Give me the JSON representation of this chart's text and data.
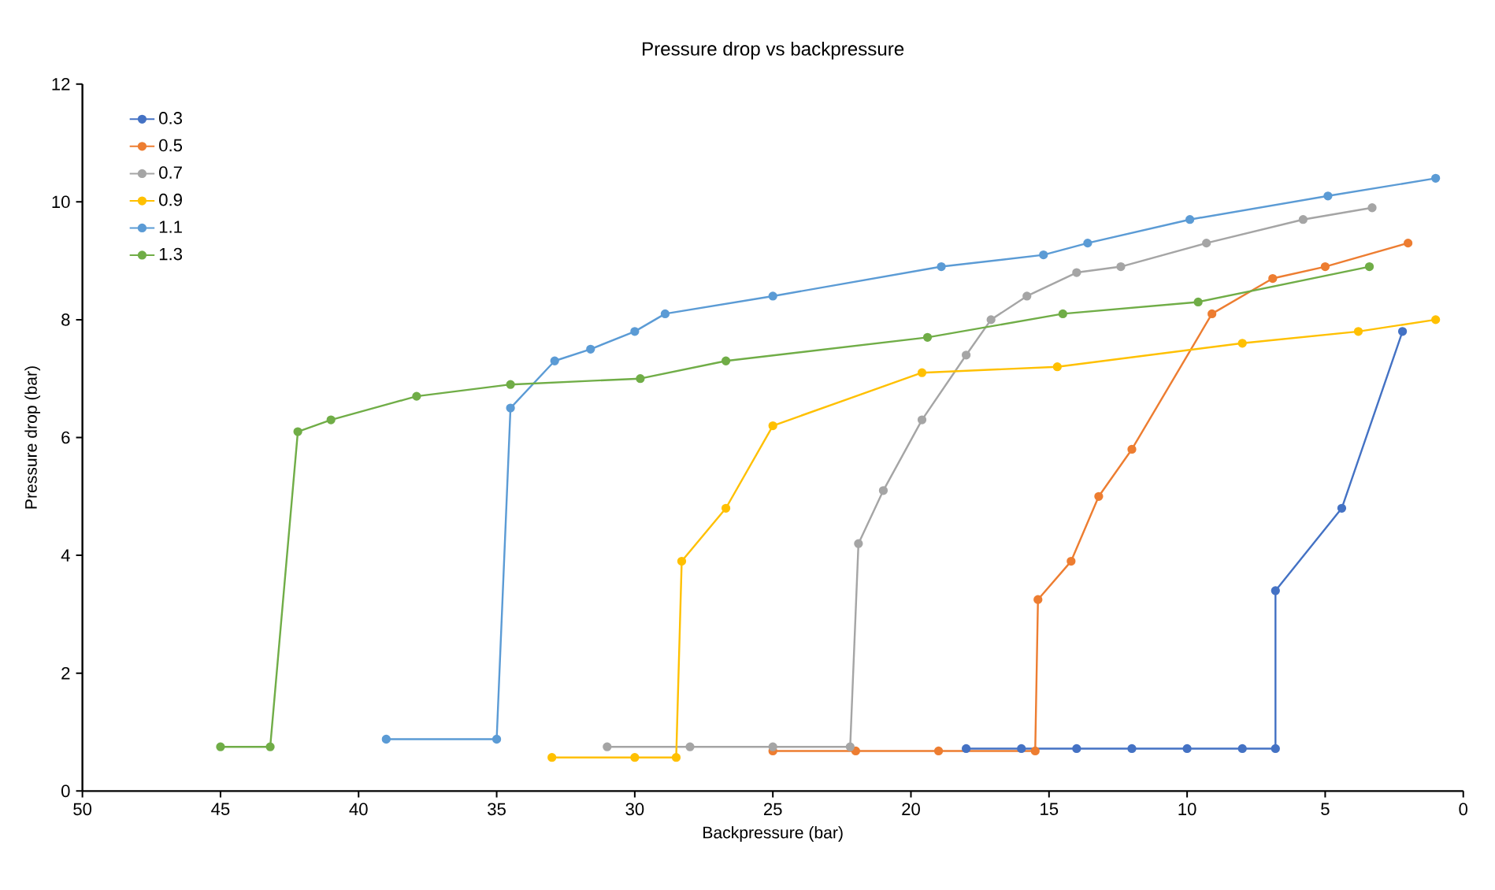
{
  "chart_data": {
    "type": "line",
    "title": "Pressure drop vs backpressure",
    "xlabel": "Backpressure (bar)",
    "ylabel": "Pressure drop (bar)",
    "xlim": [
      50,
      0
    ],
    "xticks": [
      50,
      45,
      40,
      35,
      30,
      25,
      20,
      15,
      10,
      5,
      0
    ],
    "ylim": [
      0,
      12
    ],
    "yticks": [
      0,
      2,
      4,
      6,
      8,
      10,
      12
    ],
    "grid": false,
    "legend": "top left",
    "marker": "circle",
    "line_style": "solid",
    "series": [
      {
        "name": "0.3",
        "color": "#4472c4",
        "x": [
          18,
          16,
          14,
          12,
          10,
          8,
          6.8,
          6.8,
          4.4,
          2.2
        ],
        "values": [
          0.72,
          0.72,
          0.72,
          0.72,
          0.72,
          0.72,
          0.72,
          3.4,
          4.8,
          7.8
        ]
      },
      {
        "name": "0.5",
        "color": "#ed7d31",
        "x": [
          25,
          22,
          19,
          15.5,
          15.4,
          14.2,
          13.2,
          12,
          9.1,
          6.9,
          5.0,
          2.0
        ],
        "values": [
          0.68,
          0.68,
          0.68,
          0.68,
          3.25,
          3.9,
          5.0,
          5.8,
          8.1,
          8.7,
          8.9,
          9.3
        ]
      },
      {
        "name": "0.7",
        "color": "#a5a5a5",
        "x": [
          31,
          28,
          25,
          22.2,
          21.9,
          21,
          19.6,
          18,
          17.1,
          15.8,
          14,
          12.4,
          9.3,
          5.8,
          3.3
        ],
        "values": [
          0.75,
          0.75,
          0.75,
          0.75,
          4.2,
          5.1,
          6.3,
          7.4,
          8.0,
          8.4,
          8.8,
          8.9,
          9.3,
          9.7,
          9.9
        ]
      },
      {
        "name": "0.9",
        "color": "#ffc000",
        "x": [
          33,
          30,
          28.5,
          28.3,
          26.7,
          25,
          19.6,
          14.7,
          8,
          3.8,
          1
        ],
        "values": [
          0.57,
          0.57,
          0.57,
          3.9,
          4.8,
          6.2,
          7.1,
          7.2,
          7.6,
          7.8,
          8.0
        ]
      },
      {
        "name": "1.1",
        "color": "#5b9bd5",
        "x": [
          39,
          35,
          34.5,
          32.9,
          31.6,
          30,
          28.9,
          25,
          18.9,
          15.2,
          13.6,
          9.9,
          4.9,
          1
        ],
        "values": [
          0.88,
          0.88,
          6.5,
          7.3,
          7.5,
          7.8,
          8.1,
          8.4,
          8.9,
          9.1,
          9.3,
          9.7,
          10.1,
          10.4
        ]
      },
      {
        "name": "1.3",
        "color": "#70ad47",
        "x": [
          45,
          43.2,
          42.2,
          41,
          37.9,
          34.5,
          29.8,
          26.7,
          19.4,
          14.5,
          9.6,
          3.4
        ],
        "values": [
          0.75,
          0.75,
          6.1,
          6.3,
          6.7,
          6.9,
          7.0,
          7.3,
          7.7,
          8.1,
          8.3,
          8.9
        ]
      }
    ]
  }
}
